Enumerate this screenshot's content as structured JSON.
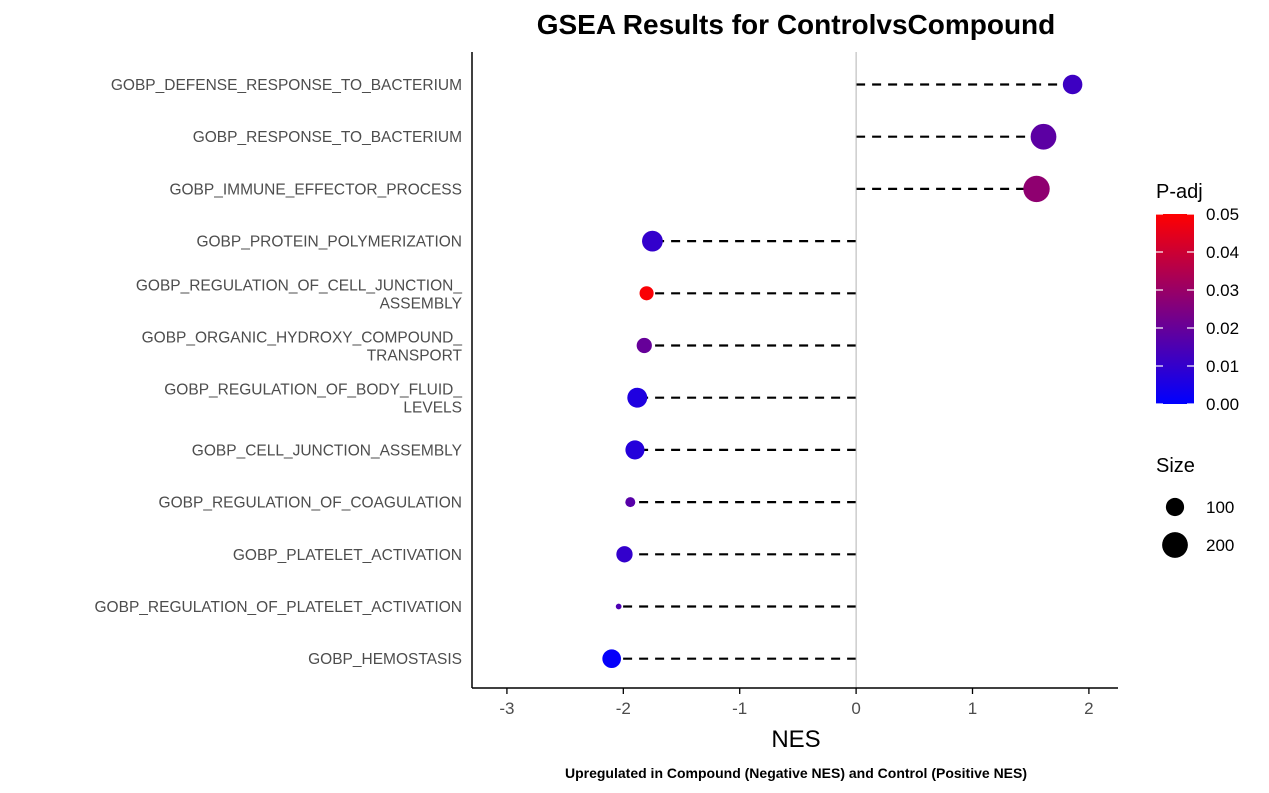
{
  "chart_data": {
    "type": "scatter",
    "subtype": "lollipop",
    "title": "GSEA Results for ControlvsCompound",
    "xlabel": "NES",
    "caption": "Upregulated in Compound (Negative NES) and Control (Positive NES)",
    "xlim": [
      -3.3,
      2.25
    ],
    "xticks": [
      -3,
      -2,
      -1,
      0,
      1,
      2
    ],
    "xtick_labels": [
      "-3",
      "-2",
      "-1",
      "0",
      "1",
      "2"
    ],
    "reference_line_x": 0,
    "grid": false,
    "stem_style": "dashed",
    "categories": [
      [
        "GOBP_DEFENSE_RESPONSE_TO_BACTERIUM"
      ],
      [
        "GOBP_RESPONSE_TO_BACTERIUM"
      ],
      [
        "GOBP_IMMUNE_EFFECTOR_PROCESS"
      ],
      [
        "GOBP_PROTEIN_POLYMERIZATION"
      ],
      [
        "GOBP_REGULATION_OF_CELL_JUNCTION_",
        "ASSEMBLY"
      ],
      [
        "GOBP_ORGANIC_HYDROXY_COMPOUND_",
        "TRANSPORT"
      ],
      [
        "GOBP_REGULATION_OF_BODY_FLUID_",
        "LEVELS"
      ],
      [
        "GOBP_CELL_JUNCTION_ASSEMBLY"
      ],
      [
        "GOBP_REGULATION_OF_COAGULATION"
      ],
      [
        "GOBP_PLATELET_ACTIVATION"
      ],
      [
        "GOBP_REGULATION_OF_PLATELET_ACTIVATION"
      ],
      [
        "GOBP_HEMOSTASIS"
      ]
    ],
    "nes": [
      1.86,
      1.61,
      1.55,
      -1.75,
      -1.8,
      -1.82,
      -1.88,
      -1.9,
      -1.94,
      -1.99,
      -2.04,
      -2.1
    ],
    "padj": [
      0.012,
      0.018,
      0.028,
      0.01,
      0.049,
      0.02,
      0.006,
      0.007,
      0.017,
      0.01,
      0.015,
      0.001
    ],
    "size": [
      115,
      200,
      210,
      130,
      60,
      70,
      120,
      110,
      30,
      80,
      10,
      105
    ],
    "legend": {
      "color": {
        "title": "P-adj",
        "min": 0.0,
        "max": 0.05,
        "low_color": "#0000ff",
        "high_color": "#ff0000",
        "ticks": [
          0.05,
          0.04,
          0.03,
          0.02,
          0.01,
          0.0
        ],
        "tick_labels": [
          "0.05",
          "0.04",
          "0.03",
          "0.02",
          "0.01",
          "0.00"
        ]
      },
      "size": {
        "title": "Size",
        "values": [
          100,
          200
        ],
        "labels": [
          "100",
          "200"
        ]
      }
    }
  }
}
